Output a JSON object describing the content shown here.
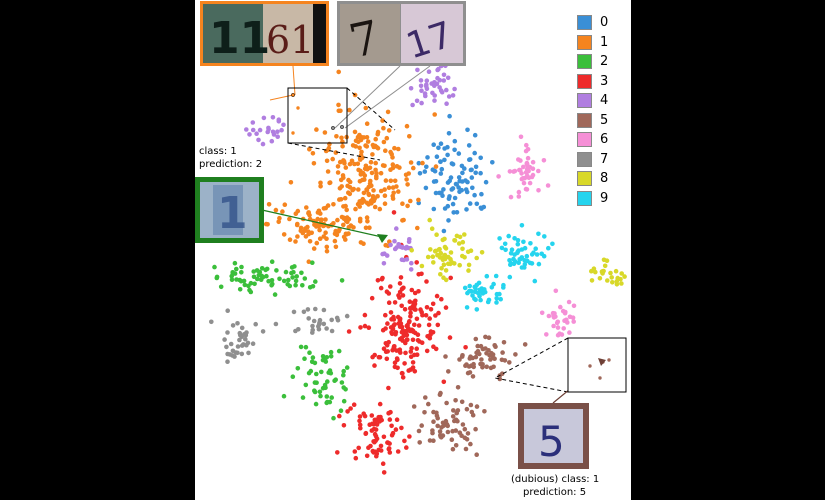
{
  "chart_data": {
    "type": "scatter",
    "title": "",
    "xlabel": "",
    "ylabel": "",
    "legend": {
      "placement": "top-right",
      "entries": [
        {
          "label": "0",
          "color": "#3a8fd6"
        },
        {
          "label": "1",
          "color": "#f5841f"
        },
        {
          "label": "2",
          "color": "#3bbf3b"
        },
        {
          "label": "3",
          "color": "#ee2b2b"
        },
        {
          "label": "4",
          "color": "#b07ee0"
        },
        {
          "label": "5",
          "color": "#a0685a"
        },
        {
          "label": "6",
          "color": "#f58fd6"
        },
        {
          "label": "7",
          "color": "#8f8f8f"
        },
        {
          "label": "8",
          "color": "#d8d829"
        },
        {
          "label": "9",
          "color": "#25d4ee"
        }
      ]
    },
    "clusters": [
      {
        "label": "0",
        "center": [
          455,
          175
        ],
        "spread": [
          22,
          28
        ],
        "count": 90
      },
      {
        "label": "1",
        "center": [
          365,
          175
        ],
        "spread": [
          32,
          38
        ],
        "count": 210
      },
      {
        "label": "1",
        "center": [
          320,
          225
        ],
        "spread": [
          32,
          14
        ],
        "count": 90
      },
      {
        "label": "2",
        "center": [
          265,
          275
        ],
        "spread": [
          40,
          10
        ],
        "count": 70
      },
      {
        "label": "2",
        "center": [
          325,
          380
        ],
        "spread": [
          18,
          20
        ],
        "count": 55
      },
      {
        "label": "3",
        "center": [
          405,
          325
        ],
        "spread": [
          24,
          35
        ],
        "count": 170
      },
      {
        "label": "3",
        "center": [
          375,
          435
        ],
        "spread": [
          18,
          20
        ],
        "count": 75
      },
      {
        "label": "4",
        "center": [
          430,
          85
        ],
        "spread": [
          13,
          13
        ],
        "count": 40
      },
      {
        "label": "4",
        "center": [
          265,
          130
        ],
        "spread": [
          12,
          10
        ],
        "count": 22
      },
      {
        "label": "4",
        "center": [
          400,
          250
        ],
        "spread": [
          10,
          12
        ],
        "count": 25
      },
      {
        "label": "5",
        "center": [
          485,
          355
        ],
        "spread": [
          22,
          14
        ],
        "count": 55
      },
      {
        "label": "5",
        "center": [
          450,
          425
        ],
        "spread": [
          20,
          18
        ],
        "count": 65
      },
      {
        "label": "6",
        "center": [
          525,
          172
        ],
        "spread": [
          11,
          14
        ],
        "count": 45
      },
      {
        "label": "6",
        "center": [
          560,
          318
        ],
        "spread": [
          10,
          13
        ],
        "count": 30
      },
      {
        "label": "7",
        "center": [
          243,
          340
        ],
        "spread": [
          14,
          13
        ],
        "count": 35
      },
      {
        "label": "7",
        "center": [
          318,
          323
        ],
        "spread": [
          14,
          8
        ],
        "count": 25
      },
      {
        "label": "8",
        "center": [
          450,
          253
        ],
        "spread": [
          20,
          14
        ],
        "count": 55
      },
      {
        "label": "8",
        "center": [
          605,
          275
        ],
        "spread": [
          13,
          8
        ],
        "count": 25
      },
      {
        "label": "9",
        "center": [
          522,
          252
        ],
        "spread": [
          14,
          14
        ],
        "count": 50
      },
      {
        "label": "9",
        "center": [
          482,
          292
        ],
        "spread": [
          16,
          8
        ],
        "count": 40
      }
    ],
    "annotations": [
      {
        "class_line": "class: 1",
        "prediction_line": "prediction: 2",
        "prefix": ""
      },
      {
        "class_line": "class: 1",
        "prediction_line": "prediction: 5",
        "prefix": "(dubious) "
      }
    ],
    "thumbnail_digits": [
      "11",
      "61",
      "7",
      "17",
      "1",
      "5"
    ]
  }
}
